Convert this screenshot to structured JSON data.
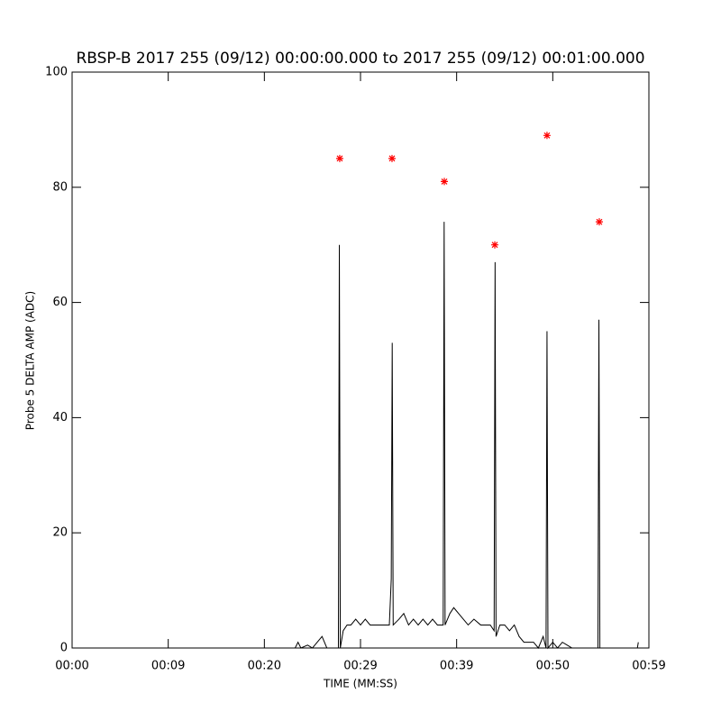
{
  "chart_data": {
    "type": "line",
    "title": "RBSP-B 2017 255 (09/12) 00:00:00.000 to 2017 255 (09/12) 00:01:00.000",
    "x_label": "TIME (MM:SS)",
    "y_label": "Probe 5 DELTA AMP (ADC)",
    "xlim": [
      0,
      60
    ],
    "xticks": [
      {
        "value": 0,
        "label": "00:00"
      },
      {
        "value": 10,
        "label": "00:09"
      },
      {
        "value": 20,
        "label": "00:20"
      },
      {
        "value": 30,
        "label": "00:29"
      },
      {
        "value": 40,
        "label": "00:39"
      },
      {
        "value": 50,
        "label": "00:50"
      },
      {
        "value": 60,
        "label": "00:59"
      }
    ],
    "ylim": [
      0,
      100
    ],
    "yticks": [
      0,
      20,
      40,
      60,
      80,
      100
    ],
    "series": [
      {
        "color": "#000000",
        "x": [
          23.2,
          23.5,
          23.8,
          24.5,
          25.0,
          25.5,
          26.0,
          26.5,
          27.5,
          27.7,
          27.8,
          27.9,
          28.2,
          28.6,
          29.0,
          29.5,
          30.0,
          30.5,
          31.0,
          32.0,
          33.0,
          33.2,
          33.3,
          33.4,
          34.0,
          34.5,
          35.0,
          35.5,
          36.0,
          36.5,
          37.0,
          37.5,
          38.0,
          38.6,
          38.7,
          38.8,
          39.3,
          39.7,
          40.2,
          40.7,
          41.2,
          41.8,
          42.5,
          43.5,
          43.9,
          44.0,
          44.1,
          44.5,
          45.0,
          45.5,
          46.0,
          46.5,
          47.0,
          48.0,
          48.5,
          49.0,
          49.3,
          49.4,
          49.5,
          50.0,
          50.5,
          51.0,
          51.5,
          52.0,
          53.0,
          54.7,
          54.8,
          54.9,
          58.8,
          58.9
        ],
        "values": [
          0,
          1,
          0,
          0.5,
          0,
          1,
          2,
          0,
          0,
          0,
          70,
          0,
          3,
          4,
          4,
          5,
          4,
          5,
          4,
          4,
          4,
          12,
          53,
          4,
          5,
          6,
          4,
          5,
          4,
          5,
          4,
          5,
          4,
          4,
          74,
          4,
          6,
          7,
          6,
          5,
          4,
          5,
          4,
          4,
          3,
          67,
          2,
          4,
          4,
          3,
          4,
          2,
          1,
          1,
          0,
          2,
          0,
          55,
          0,
          1,
          0,
          1,
          0.5,
          0,
          0,
          0,
          57,
          0,
          0,
          1
        ]
      },
      {
        "color": "#ff0000",
        "marker": "star",
        "x": [
          27.84,
          33.28,
          38.72,
          43.97,
          49.4,
          54.84
        ],
        "values": [
          85,
          85,
          81,
          70,
          89,
          74
        ]
      }
    ]
  }
}
